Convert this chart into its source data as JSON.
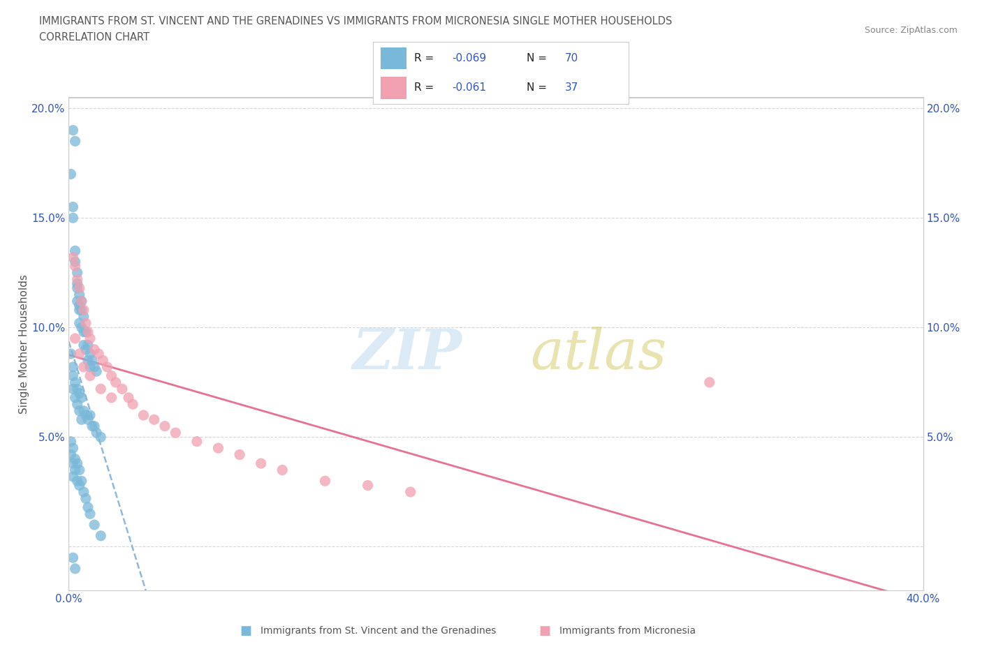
{
  "title_line1": "IMMIGRANTS FROM ST. VINCENT AND THE GRENADINES VS IMMIGRANTS FROM MICRONESIA SINGLE MOTHER HOUSEHOLDS",
  "title_line2": "CORRELATION CHART",
  "source": "Source: ZipAtlas.com",
  "ylabel_label": "Single Mother Households",
  "legend_r1": "R = -0.069",
  "legend_n1": "N = 70",
  "legend_r2": "R = -0.061",
  "legend_n2": "N = 37",
  "color_blue": "#7ab8d9",
  "color_pink": "#f0a0b0",
  "legend_label1": "Immigrants from St. Vincent and the Grenadines",
  "legend_label2": "Immigrants from Micronesia",
  "blue_x": [
    0.002,
    0.003,
    0.001,
    0.002,
    0.002,
    0.003,
    0.003,
    0.004,
    0.004,
    0.004,
    0.004,
    0.005,
    0.005,
    0.005,
    0.005,
    0.006,
    0.006,
    0.006,
    0.007,
    0.007,
    0.007,
    0.008,
    0.008,
    0.009,
    0.009,
    0.01,
    0.01,
    0.011,
    0.012,
    0.013,
    0.001,
    0.002,
    0.002,
    0.002,
    0.003,
    0.003,
    0.004,
    0.004,
    0.005,
    0.005,
    0.006,
    0.006,
    0.007,
    0.008,
    0.009,
    0.01,
    0.011,
    0.012,
    0.013,
    0.015,
    0.001,
    0.001,
    0.002,
    0.002,
    0.002,
    0.003,
    0.003,
    0.004,
    0.004,
    0.005,
    0.005,
    0.006,
    0.007,
    0.008,
    0.009,
    0.01,
    0.012,
    0.015,
    0.002,
    0.003
  ],
  "blue_y": [
    0.19,
    0.185,
    0.17,
    0.155,
    0.15,
    0.135,
    0.13,
    0.125,
    0.12,
    0.118,
    0.112,
    0.115,
    0.11,
    0.108,
    0.102,
    0.112,
    0.108,
    0.1,
    0.105,
    0.098,
    0.092,
    0.098,
    0.09,
    0.092,
    0.085,
    0.088,
    0.082,
    0.085,
    0.082,
    0.08,
    0.088,
    0.082,
    0.078,
    0.072,
    0.075,
    0.068,
    0.072,
    0.065,
    0.07,
    0.062,
    0.068,
    0.058,
    0.062,
    0.06,
    0.058,
    0.06,
    0.055,
    0.055,
    0.052,
    0.05,
    0.048,
    0.042,
    0.045,
    0.038,
    0.032,
    0.04,
    0.035,
    0.038,
    0.03,
    0.035,
    0.028,
    0.03,
    0.025,
    0.022,
    0.018,
    0.015,
    0.01,
    0.005,
    -0.005,
    -0.01
  ],
  "pink_x": [
    0.002,
    0.003,
    0.004,
    0.005,
    0.006,
    0.007,
    0.008,
    0.009,
    0.01,
    0.012,
    0.014,
    0.016,
    0.018,
    0.02,
    0.022,
    0.025,
    0.028,
    0.03,
    0.035,
    0.04,
    0.045,
    0.05,
    0.06,
    0.07,
    0.08,
    0.09,
    0.1,
    0.12,
    0.14,
    0.16,
    0.003,
    0.005,
    0.007,
    0.01,
    0.015,
    0.02,
    0.3
  ],
  "pink_y": [
    0.132,
    0.128,
    0.122,
    0.118,
    0.112,
    0.108,
    0.102,
    0.098,
    0.095,
    0.09,
    0.088,
    0.085,
    0.082,
    0.078,
    0.075,
    0.072,
    0.068,
    0.065,
    0.06,
    0.058,
    0.055,
    0.052,
    0.048,
    0.045,
    0.042,
    0.038,
    0.035,
    0.03,
    0.028,
    0.025,
    0.095,
    0.088,
    0.082,
    0.078,
    0.072,
    0.068,
    0.075
  ]
}
